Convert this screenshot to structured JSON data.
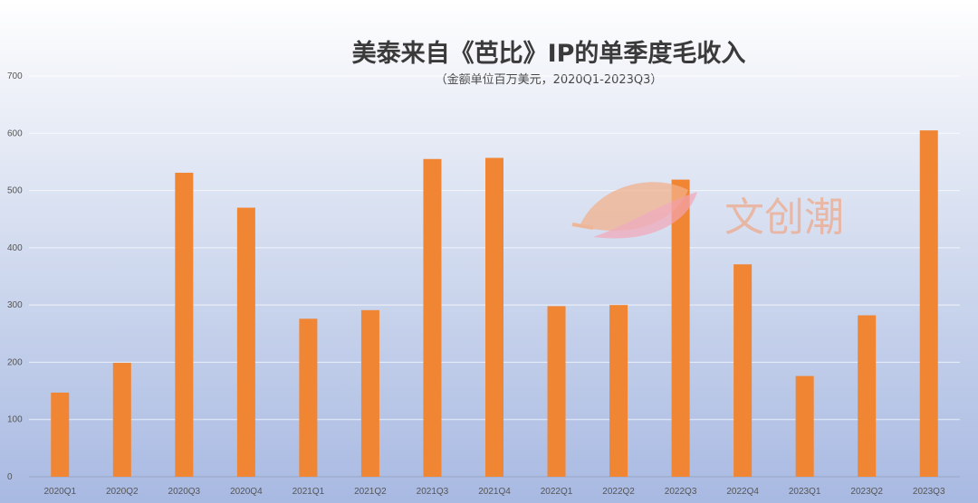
{
  "chart_data": {
    "type": "bar",
    "title": "美泰来自《芭比》IP的单季度毛收入",
    "subtitle": "（金额单位百万美元，2020Q1-2023Q3）",
    "categories": [
      "2020Q1",
      "2020Q2",
      "2020Q3",
      "2020Q4",
      "2021Q1",
      "2021Q2",
      "2021Q3",
      "2021Q4",
      "2022Q1",
      "2022Q2",
      "2022Q3",
      "2022Q4",
      "2023Q1",
      "2023Q2",
      "2023Q3"
    ],
    "values": [
      147,
      199,
      531,
      470,
      276,
      291,
      555,
      557,
      298,
      300,
      519,
      371,
      176,
      282,
      605
    ],
    "ylim": [
      0,
      700
    ],
    "yticks": [
      0,
      100,
      200,
      300,
      400,
      500,
      600,
      700
    ],
    "grid": true,
    "bar_color": "#f08534"
  },
  "watermark": {
    "text": "文创潮",
    "icon": "leaf-logo-icon"
  }
}
